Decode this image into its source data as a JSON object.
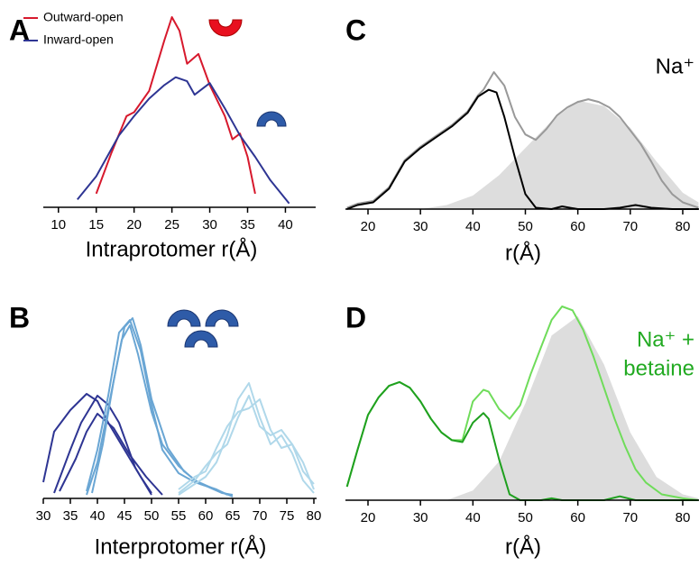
{
  "chart_data": [
    {
      "type": "line",
      "panel": "A",
      "x_label": "Intraprotomer r(Å)",
      "xlim": [
        8,
        44
      ],
      "xticks": [
        10,
        15,
        20,
        25,
        30,
        35,
        40
      ],
      "series": [
        {
          "name": "Outward-open",
          "color": "#d7192d",
          "x": [
            15,
            17,
            19,
            20,
            22,
            24,
            25,
            26,
            27,
            28.5,
            30,
            32,
            33,
            34,
            35,
            36
          ],
          "values": [
            7,
            28,
            47,
            49,
            60,
            86,
            98,
            91,
            74,
            79,
            63,
            47,
            35,
            38,
            26,
            7
          ]
        },
        {
          "name": "Inward-open",
          "color": "#2e3593",
          "x": [
            12.5,
            15,
            18,
            20,
            22,
            24,
            25.5,
            27,
            28,
            30,
            32,
            34,
            36,
            38,
            40.5
          ],
          "values": [
            4,
            16,
            37,
            47,
            56,
            63,
            67,
            65,
            58,
            64,
            51,
            37,
            26,
            14,
            2
          ]
        }
      ]
    },
    {
      "type": "line",
      "panel": "B",
      "x_label": "Interprotomer r(Å)",
      "xlim": [
        30,
        80.5
      ],
      "xticks": [
        30,
        35,
        40,
        45,
        50,
        55,
        60,
        65,
        70,
        75,
        80
      ],
      "series": [
        {
          "color": "#2e3593",
          "x": [
            30,
            32,
            35,
            38,
            40,
            42,
            45,
            48,
            50
          ],
          "values": [
            9,
            37,
            49,
            58,
            54,
            42,
            27,
            12,
            3
          ]
        },
        {
          "color": "#2e3593",
          "x": [
            32,
            35,
            37,
            40,
            42,
            44,
            47,
            50
          ],
          "values": [
            3,
            27,
            42,
            57,
            52,
            42,
            17,
            2
          ]
        },
        {
          "color": "#2e3593",
          "x": [
            33,
            36,
            38,
            40,
            43,
            46,
            49,
            52
          ],
          "values": [
            4,
            22,
            37,
            47,
            39,
            24,
            12,
            2
          ]
        },
        {
          "color": "#6aa6d4",
          "x": [
            38,
            40,
            42,
            44,
            46,
            48,
            50,
            52,
            55,
            58,
            60,
            63,
            65
          ],
          "values": [
            4,
            27,
            57,
            92,
            99,
            82,
            52,
            27,
            14,
            9,
            7,
            3,
            2
          ]
        },
        {
          "color": "#6aa6d4",
          "x": [
            39,
            41,
            43,
            45,
            46.5,
            48,
            50,
            53,
            56,
            59,
            62,
            64
          ],
          "values": [
            3,
            30,
            65,
            95,
            100,
            85,
            55,
            28,
            15,
            8,
            5,
            2
          ]
        },
        {
          "color": "#6aa6d4",
          "x": [
            38,
            40,
            42,
            44.5,
            46,
            47.5,
            50,
            52,
            55,
            58,
            61,
            65
          ],
          "values": [
            2,
            20,
            50,
            88,
            96,
            80,
            48,
            30,
            18,
            10,
            6,
            1
          ]
        },
        {
          "color": "#b0d8ea",
          "x": [
            55,
            58,
            60,
            62,
            64,
            66,
            68,
            70,
            72,
            74,
            76,
            78,
            80
          ],
          "values": [
            2,
            8,
            12,
            20,
            35,
            55,
            64,
            45,
            30,
            35,
            25,
            10,
            3
          ]
        },
        {
          "color": "#b0d8ea",
          "x": [
            55,
            58,
            60,
            62,
            64,
            66,
            68,
            70,
            72,
            74,
            76,
            78,
            80
          ],
          "values": [
            3,
            10,
            18,
            25,
            30,
            45,
            57,
            40,
            35,
            38,
            30,
            20,
            5
          ]
        },
        {
          "color": "#b0d8ea",
          "x": [
            55,
            58,
            60,
            62,
            64,
            66,
            68,
            70,
            72,
            74,
            76,
            78,
            80
          ],
          "values": [
            5,
            12,
            15,
            28,
            40,
            48,
            50,
            55,
            38,
            28,
            30,
            15,
            8
          ]
        }
      ]
    },
    {
      "type": "line",
      "panel": "C",
      "x_label": "r(Å)",
      "annotation": [
        "Na⁺"
      ],
      "annotation_color": "#000000",
      "xlim": [
        15.7,
        83.1
      ],
      "xticks": [
        20,
        30,
        40,
        50,
        60,
        70,
        80
      ],
      "series": [
        {
          "color": "#dddddd",
          "fill": true,
          "x": [
            30,
            35,
            40,
            45,
            50,
            55,
            60,
            65,
            70,
            75,
            80,
            83
          ],
          "values": [
            0,
            3,
            10,
            25,
            45,
            65,
            80,
            76,
            60,
            35,
            12,
            5
          ]
        },
        {
          "color": "#999999",
          "x": [
            16,
            18,
            21,
            24,
            27,
            30,
            33,
            36,
            39,
            41,
            42,
            44,
            46,
            48,
            50,
            52,
            54,
            56,
            58,
            60,
            62,
            64,
            66,
            68,
            70,
            72,
            74,
            76,
            78,
            80,
            83
          ],
          "values": [
            1,
            4,
            6,
            16,
            36,
            46,
            54,
            62,
            72,
            84,
            88,
            101,
            91,
            68,
            55,
            51,
            59,
            69,
            75,
            79,
            81,
            79,
            75,
            68,
            58,
            48,
            35,
            21,
            11,
            5,
            1
          ]
        },
        {
          "color": "#000000",
          "x": [
            16,
            18,
            21,
            24,
            27,
            30,
            33,
            36,
            39,
            41,
            43,
            44.5,
            46,
            48,
            50,
            52,
            55,
            57,
            60,
            65,
            68,
            71,
            74,
            78,
            83
          ],
          "values": [
            0,
            3,
            5,
            15,
            35,
            45,
            53,
            61,
            71,
            83,
            88,
            86,
            68,
            38,
            11,
            1,
            0,
            2,
            0,
            0,
            1,
            3,
            1,
            0,
            0
          ]
        }
      ]
    },
    {
      "type": "line",
      "panel": "D",
      "x_label": "r(Å)",
      "annotation": [
        "Na⁺ +",
        "betaine"
      ],
      "annotation_color": "#22aa22",
      "xlim": [
        15.7,
        83.1
      ],
      "xticks": [
        20,
        30,
        40,
        50,
        60,
        70,
        80
      ],
      "series": [
        {
          "color": "#dddddd",
          "fill": true,
          "x": [
            35,
            40,
            45,
            50,
            55,
            60,
            65,
            70,
            75,
            80,
            83
          ],
          "values": [
            0,
            5,
            20,
            50,
            85,
            95,
            70,
            35,
            12,
            3,
            1
          ]
        },
        {
          "color": "#6fdc5a",
          "x": [
            16,
            18,
            20,
            22,
            24,
            26,
            28,
            30,
            32,
            34,
            36,
            38,
            40,
            42,
            43,
            45,
            47,
            49,
            51,
            53,
            55,
            57,
            59,
            61,
            63,
            65,
            67,
            69,
            71,
            73,
            76,
            80,
            83
          ],
          "values": [
            7,
            26,
            44,
            53,
            59,
            61,
            58,
            51,
            42,
            35,
            31,
            31,
            51,
            57,
            56,
            47,
            42,
            49,
            65,
            79,
            93,
            100,
            98,
            88,
            74,
            58,
            42,
            28,
            16,
            9,
            3,
            1,
            0
          ]
        },
        {
          "color": "#1fa01f",
          "x": [
            16,
            18,
            20,
            22,
            24,
            26,
            28,
            30,
            32,
            34,
            36,
            38,
            40,
            42,
            43,
            45,
            47,
            49,
            51,
            53,
            55,
            57,
            60,
            65,
            68,
            71,
            75,
            83
          ],
          "values": [
            7,
            26,
            44,
            53,
            59,
            61,
            58,
            51,
            42,
            35,
            31,
            30,
            40,
            45,
            42,
            21,
            3,
            0,
            0,
            0,
            1,
            0,
            0,
            0,
            2,
            0,
            0,
            0
          ]
        }
      ]
    }
  ]
}
